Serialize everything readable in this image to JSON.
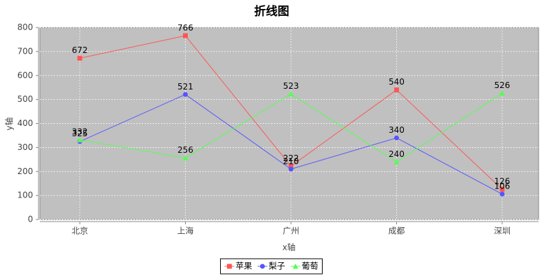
{
  "chart_data": {
    "type": "line",
    "title": "折线图",
    "x_label": "x轴",
    "y_label": "y轴",
    "categories": [
      "北京",
      "上海",
      "广州",
      "成都",
      "深圳"
    ],
    "series": [
      {
        "name": "苹果",
        "color": "#ff5555",
        "marker": "square",
        "values": [
          672,
          766,
          222,
          540,
          126
        ]
      },
      {
        "name": "梨子",
        "color": "#5555ff",
        "marker": "circle",
        "values": [
          325,
          521,
          210,
          340,
          106
        ]
      },
      {
        "name": "葡萄",
        "color": "#55ff55",
        "marker": "triangle",
        "values": [
          332,
          256,
          523,
          240,
          526
        ]
      }
    ],
    "ylim": [
      0,
      800
    ],
    "yticks": [
      0,
      100,
      200,
      300,
      400,
      500,
      600,
      700,
      800
    ],
    "grid": true,
    "legend": "bottom",
    "background": "#c0c0c0"
  }
}
